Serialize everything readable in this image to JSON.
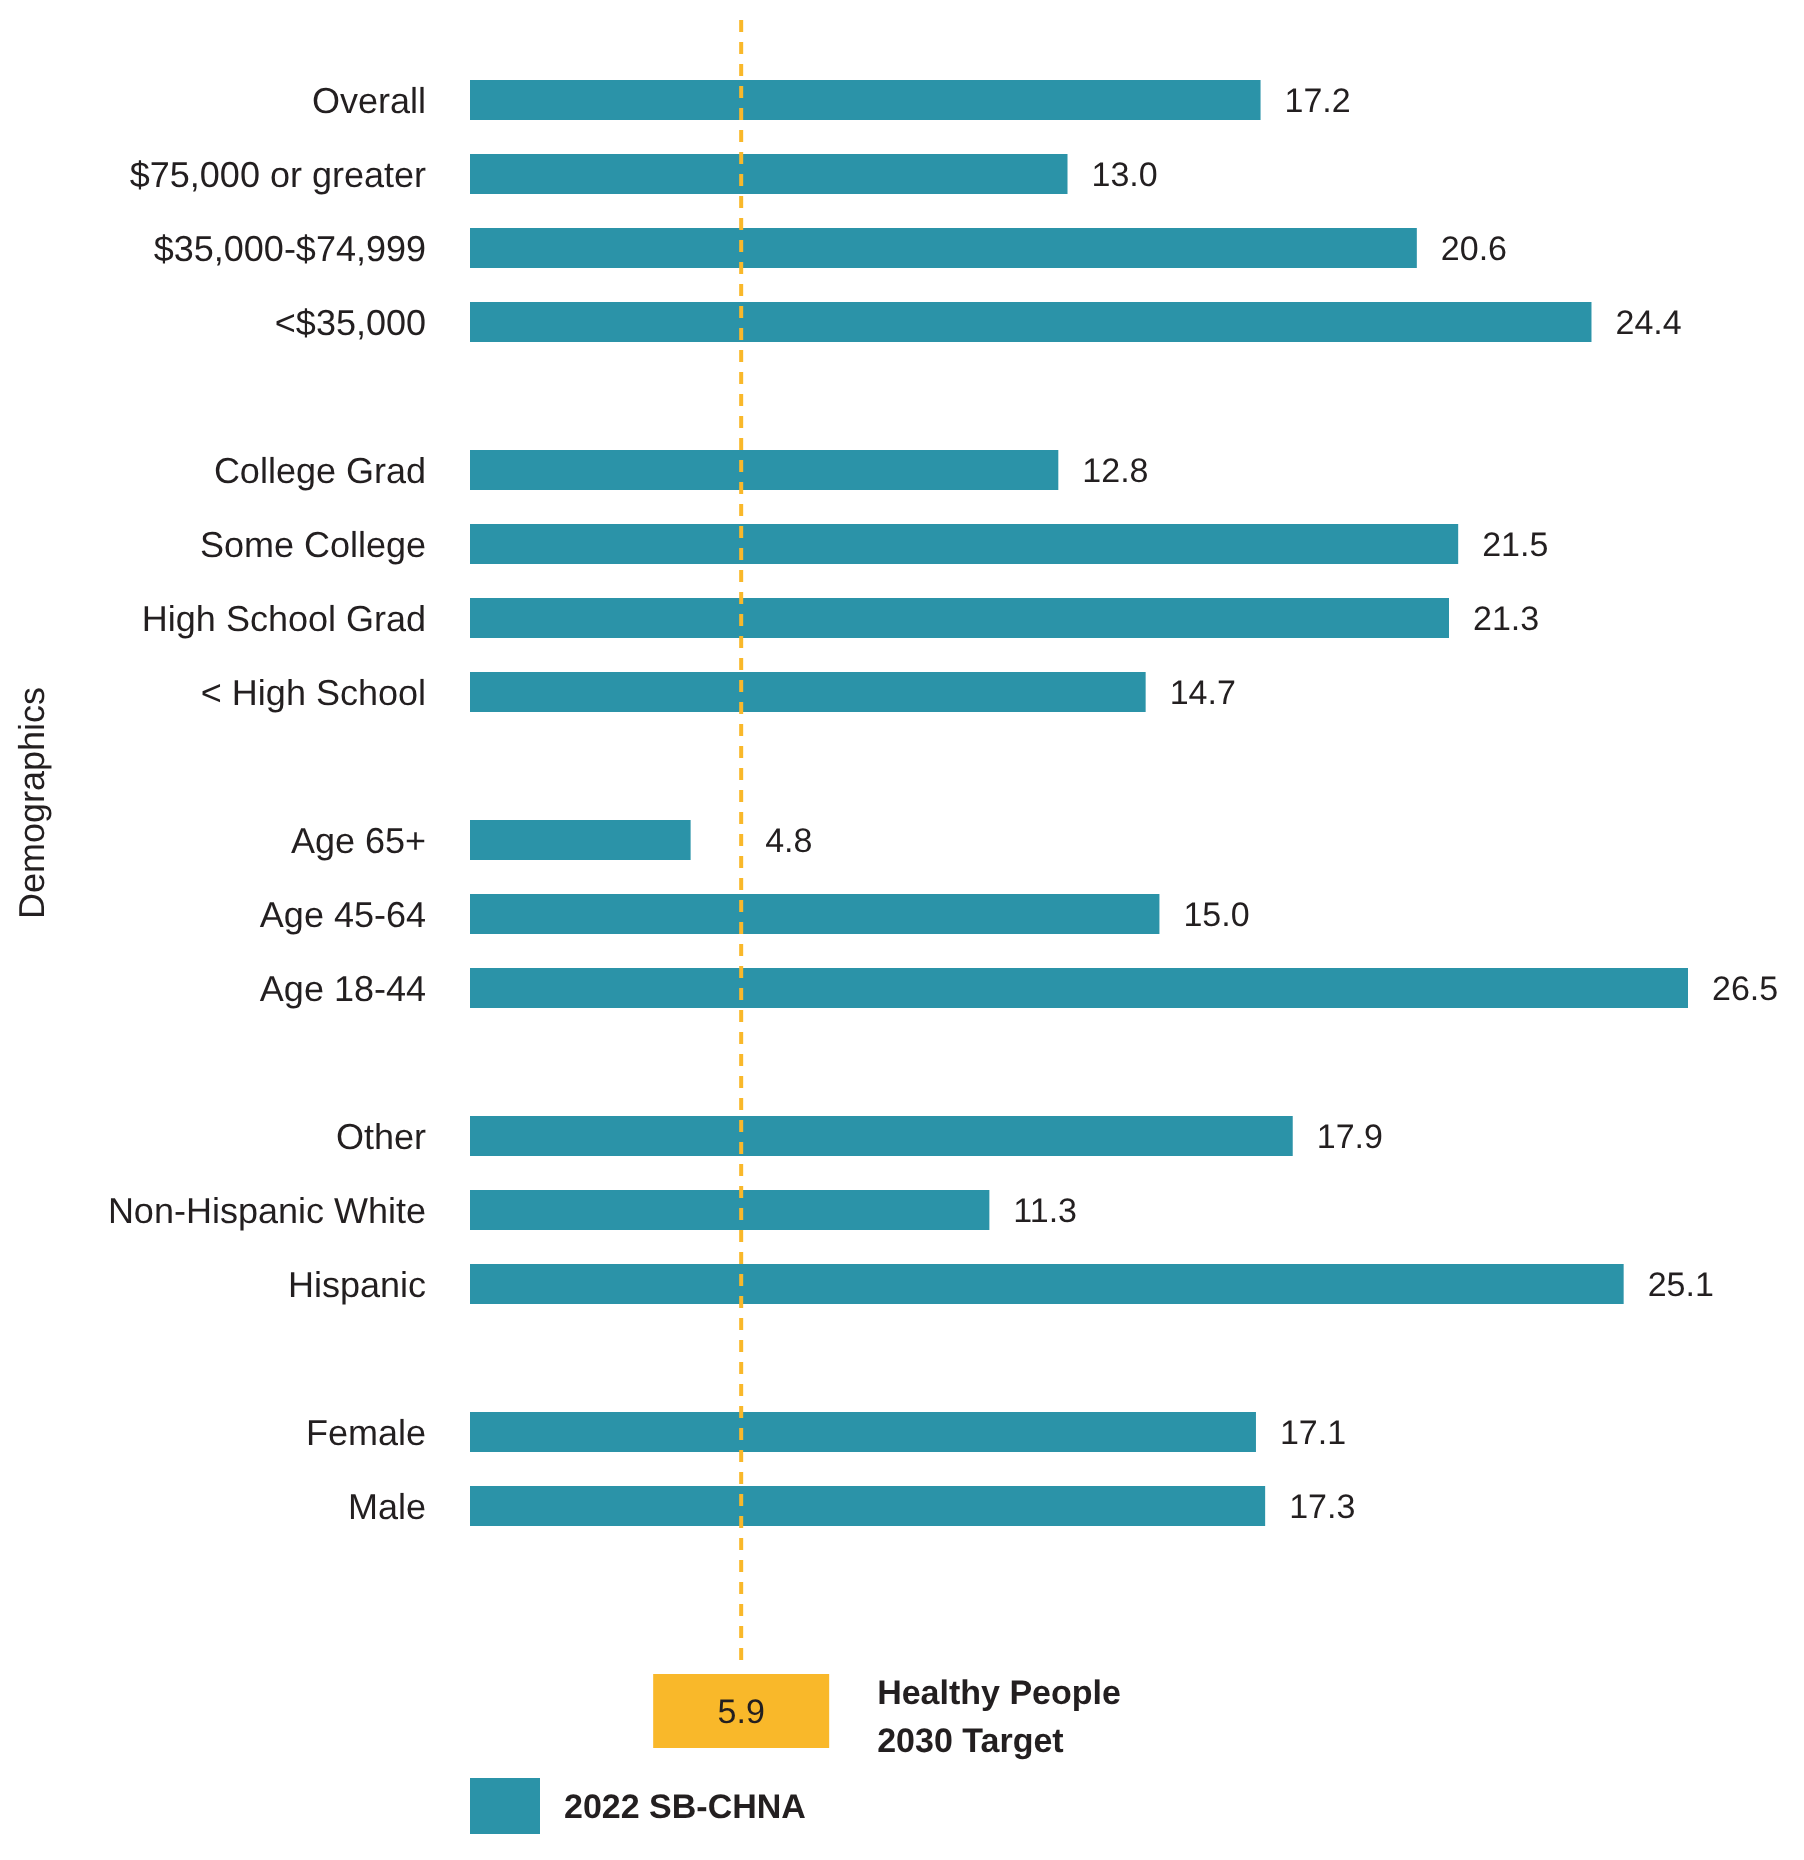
{
  "chart_data": {
    "type": "bar",
    "orientation": "horizontal",
    "ylabel": "Demographics",
    "categories": [
      "Overall",
      "$75,000 or greater",
      "$35,000-$74,999",
      "<$35,000",
      null,
      "College Grad",
      "Some College",
      "High School Grad",
      "< High School",
      null,
      "Age 65+",
      "Age 45-64",
      "Age 18-44",
      null,
      "Other",
      "Non-Hispanic White",
      "Hispanic",
      null,
      "Female",
      "Male"
    ],
    "series": [
      {
        "name": "2022 SB-CHNA",
        "color": "#2b93a8",
        "values": [
          17.2,
          13.0,
          20.6,
          24.4,
          null,
          12.8,
          21.5,
          21.3,
          14.7,
          null,
          4.8,
          15.0,
          26.5,
          null,
          17.9,
          11.3,
          25.1,
          null,
          17.1,
          17.3
        ],
        "value_labels": [
          "17.2",
          "13.0",
          "20.6",
          "24.4",
          null,
          "12.8",
          "21.5",
          "21.3",
          "14.7",
          null,
          "4.8",
          "15.0",
          "26.5",
          null,
          "17.9",
          "11.3",
          "25.1",
          null,
          "17.1",
          "17.3"
        ]
      }
    ],
    "ref_lines": [
      {
        "axis": "x",
        "value": 5.9,
        "label": "5.9",
        "color": "#f9b82a",
        "line_style": "dashed"
      }
    ],
    "annotations": [
      "Healthy People 2030 Target"
    ],
    "tick_labels": "y",
    "legend": "bottom left"
  }
}
